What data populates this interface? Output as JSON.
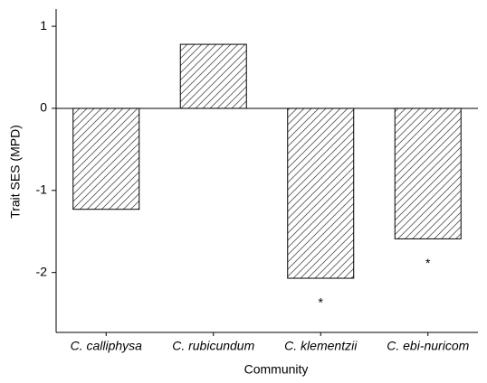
{
  "chart_data": {
    "type": "bar",
    "categories": [
      "C. calliphysa",
      "C. rubicundum",
      "C. klementzii",
      "C. ebi-nuricom"
    ],
    "values": [
      -1.23,
      0.78,
      -2.07,
      -1.59
    ],
    "color": "#555555",
    "hatch": "diagonal",
    "xlabel": "Community",
    "ylabel": "Trait SES (MPD)",
    "ylim": [
      -2.73,
      1.21
    ],
    "yticks": [
      -2,
      -1,
      0,
      1
    ],
    "annotations": [
      {
        "text": "*",
        "x": "C. klementzii"
      },
      {
        "text": "*",
        "x": "C. ebi-nuricom"
      }
    ]
  }
}
